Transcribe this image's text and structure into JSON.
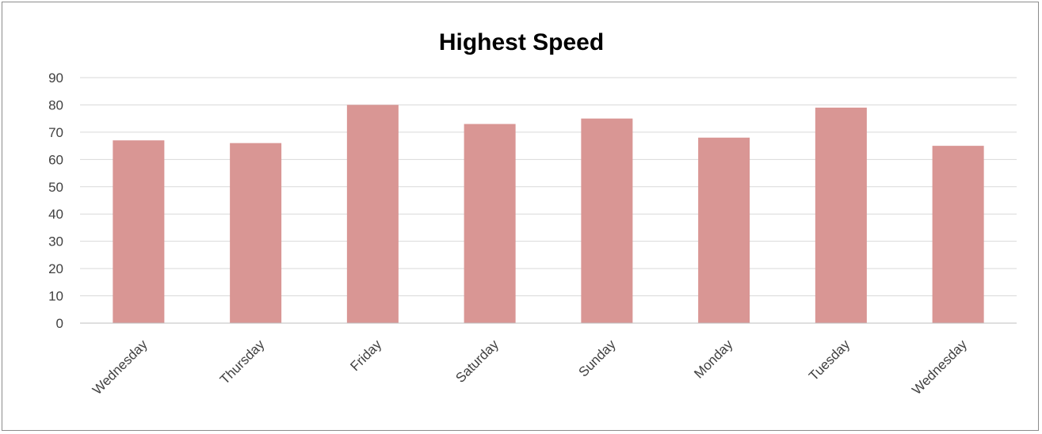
{
  "chart_data": {
    "type": "bar",
    "title": "Highest Speed",
    "categories": [
      "Wednesday",
      "Thursday",
      "Friday",
      "Saturday",
      "Sunday",
      "Monday",
      "Tuesday",
      "Wednesday"
    ],
    "values": [
      67,
      66,
      80,
      73,
      75,
      68,
      79,
      65
    ],
    "ylim": [
      0,
      90
    ],
    "yticks": [
      0,
      10,
      20,
      30,
      40,
      50,
      60,
      70,
      80,
      90
    ],
    "grid": true,
    "legend": "none",
    "bar_color": "#d99694",
    "gridline_color": "#d9d9d9",
    "axis_color": "#bfbfbf"
  }
}
